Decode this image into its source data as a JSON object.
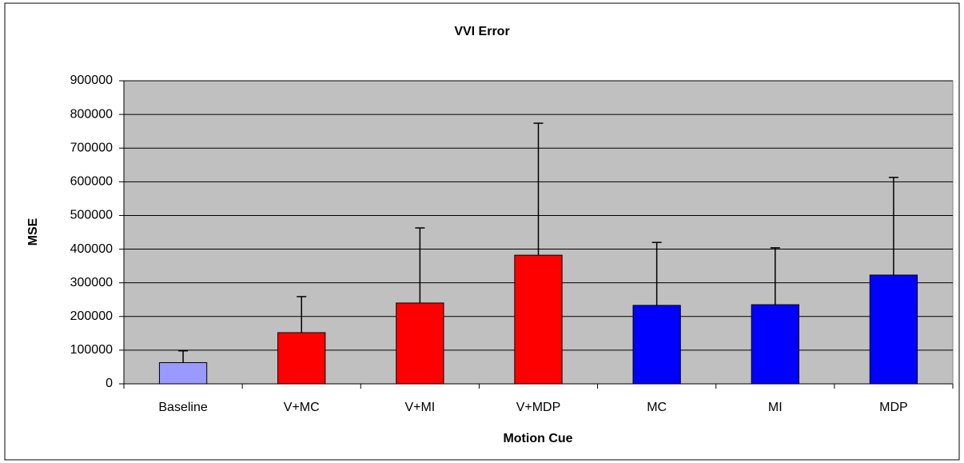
{
  "chart_data": {
    "type": "bar",
    "title": "VVI Error",
    "x_label": "Motion Cue",
    "y_label": "MSE",
    "categories": [
      "Baseline",
      "V+MC",
      "V+MI",
      "V+MDP",
      "MC",
      "MI",
      "MDP"
    ],
    "values": [
      63000,
      152000,
      240000,
      382000,
      233000,
      235000,
      323000
    ],
    "errors": [
      35000,
      107000,
      223000,
      392000,
      187000,
      169000,
      290000
    ],
    "colors": [
      "#9999ff",
      "#ff0000",
      "#ff0000",
      "#ff0000",
      "#0000ff",
      "#0000ff",
      "#0000ff"
    ],
    "ylim": [
      0,
      900000
    ],
    "yticks": [
      0,
      100000,
      200000,
      300000,
      400000,
      500000,
      600000,
      700000,
      800000,
      900000
    ],
    "grid": true,
    "plot_background": "#c0c0c0"
  }
}
